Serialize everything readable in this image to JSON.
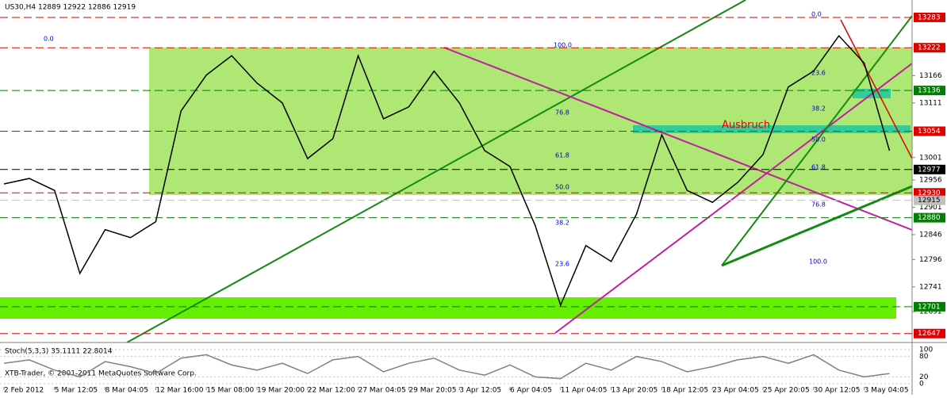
{
  "chart_data": {
    "type": "line",
    "title": "US30,H4 12889 12922 12886 12919",
    "watermark": "XTB-Trader, © 2001-2011 MetaQuotes Software Corp.",
    "annotation": "Ausbruch",
    "fib_labels": [
      "0.0",
      "100.0",
      "76.8",
      "61.8",
      "50.0",
      "38.2",
      "23.6",
      "0.0",
      "23.6",
      "38.2",
      "50.0",
      "61.8",
      "76.8",
      "100.0"
    ],
    "categories": [
      "2 Feb 2012",
      null,
      "5 Mar 12:05",
      null,
      "8 Mar 04:05",
      null,
      "12 Mar 16:00",
      null,
      "15 Mar 08:00",
      null,
      "19 Mar 20:00",
      null,
      "22 Mar 12:00",
      null,
      "27 Mar 04:05",
      null,
      "29 Mar 20:05",
      null,
      "3 Apr 12:05",
      null,
      "6 Apr 04:05",
      null,
      "11 Apr 04:05",
      null,
      "13 Apr 20:05",
      null,
      "18 Apr 12:05",
      null,
      "23 Apr 04:05",
      null,
      "25 Apr 20:05",
      null,
      "30 Apr 12:05",
      null,
      "3 May 04:05",
      null
    ],
    "series": [
      {
        "color": "#000000",
        "values": [
          12948,
          12959,
          12935,
          12768,
          12856,
          12840,
          12872,
          13095,
          13167,
          13206,
          13151,
          13111,
          12999,
          13039,
          13206,
          13079,
          13103,
          13175,
          13111,
          13015,
          12983,
          12864,
          12704,
          12824,
          12792,
          12887,
          13047,
          12935,
          12911,
          12951,
          13007,
          13143,
          13175,
          13246,
          13191,
          13015
        ]
      }
    ],
    "ylim": [
      12629,
      13318
    ],
    "yticks": [
      13166,
      13111,
      13001,
      12956,
      12901,
      12846,
      12796,
      12741,
      12691
    ],
    "levels": [
      {
        "value": 13283,
        "color": "#e00000"
      },
      {
        "value": 13222,
        "color": "#e00000"
      },
      {
        "value": 13136,
        "color": "#008000"
      },
      {
        "value": 13054,
        "color": "#e00000"
      },
      {
        "value": 12977,
        "color": "#000000"
      },
      {
        "value": 12930,
        "color": "#e00000"
      },
      {
        "value": 12915,
        "color": "#c0c0c0"
      },
      {
        "value": 12880,
        "color": "#008000"
      },
      {
        "value": 12701,
        "color": "#008000"
      },
      {
        "value": 12647,
        "color": "#e00000"
      }
    ],
    "stochastic": {
      "title": "Stoch(5,3,3) 35.1111 22.8014",
      "ylim": [
        0,
        100
      ],
      "yticks": [
        100,
        80,
        20,
        0
      ],
      "color": "#808080",
      "values": [
        60,
        70,
        40,
        20,
        65,
        50,
        30,
        75,
        85,
        55,
        40,
        60,
        30,
        70,
        80,
        35,
        60,
        75,
        40,
        25,
        55,
        20,
        15,
        60,
        40,
        80,
        65,
        35,
        50,
        70,
        80,
        60,
        85,
        40,
        20,
        30
      ]
    }
  }
}
